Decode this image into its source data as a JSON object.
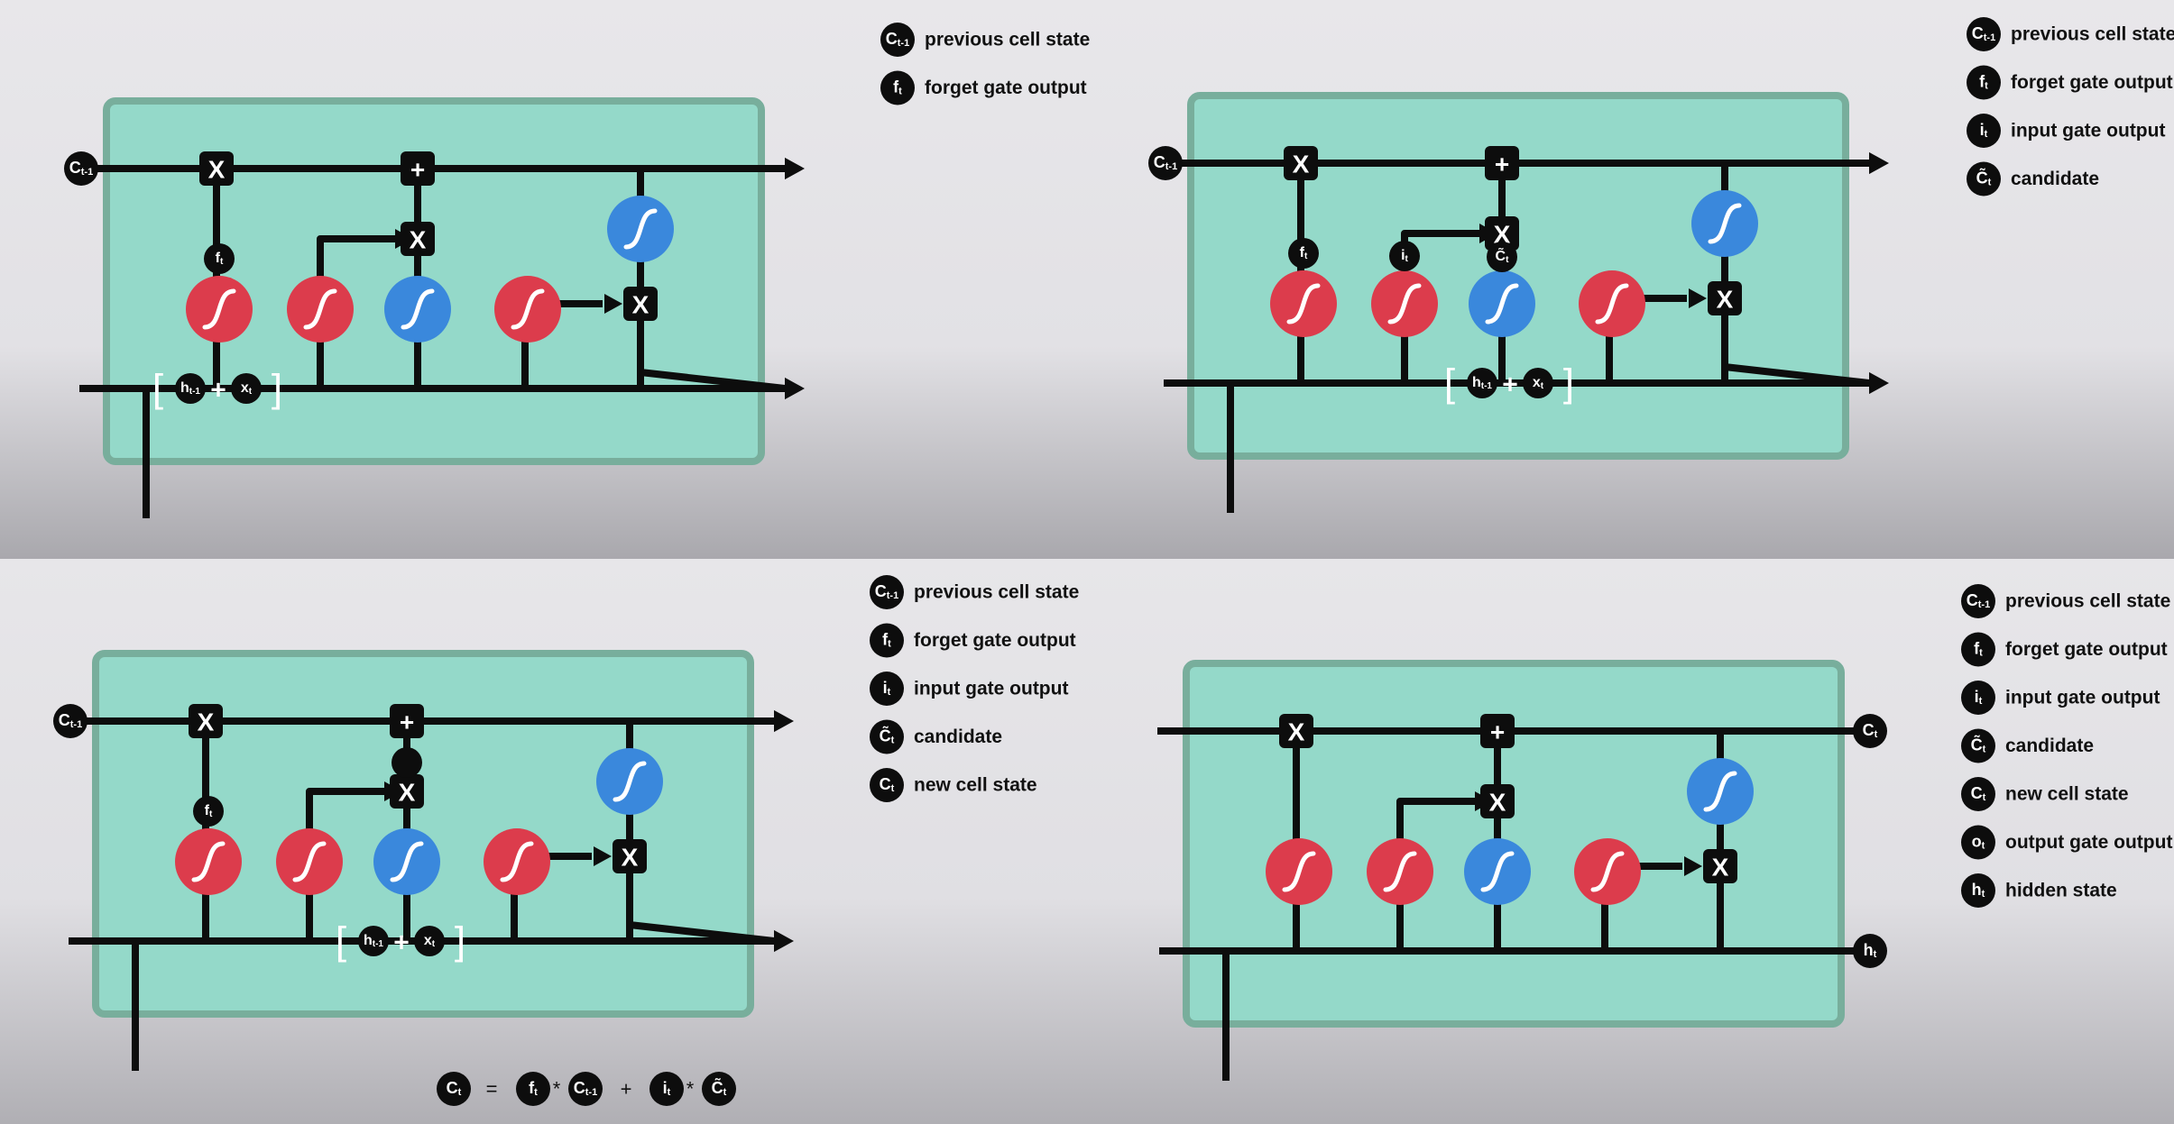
{
  "diagram": {
    "panels": [
      {
        "legend": [
          {
            "symbol": "C_{t-1}",
            "label": "previous cell state"
          },
          {
            "symbol": "f_t",
            "label": "forget gate output"
          }
        ],
        "node_labels": {
          "forget_gate": "f_t"
        },
        "input_tokens": [
          "h_{t-1}",
          "+",
          "x_t"
        ],
        "cell_input": "C_{t-1}"
      },
      {
        "legend": [
          {
            "symbol": "C_{t-1}",
            "label": "previous cell state"
          },
          {
            "symbol": "f_t",
            "label": "forget gate output"
          },
          {
            "symbol": "i_t",
            "label": "input gate output"
          },
          {
            "symbol": "C~_t",
            "label": "candidate"
          }
        ],
        "node_labels": {
          "forget_gate": "f_t",
          "input_gate": "i_t",
          "candidate": "C~_t"
        },
        "input_tokens": [
          "h_{t-1}",
          "+",
          "x_t"
        ],
        "cell_input": "C_{t-1}"
      },
      {
        "legend": [
          {
            "symbol": "C_{t-1}",
            "label": "previous cell state"
          },
          {
            "symbol": "f_t",
            "label": "forget gate output"
          },
          {
            "symbol": "i_t",
            "label": "input gate output"
          },
          {
            "symbol": "C~_t",
            "label": "candidate"
          },
          {
            "symbol": "C_t",
            "label": "new cell state"
          }
        ],
        "node_labels": {
          "forget_gate": "f_t"
        },
        "input_tokens": [
          "h_{t-1}",
          "+",
          "x_t"
        ],
        "cell_input": "C_{t-1}",
        "equation": {
          "lhs": "C_t",
          "equals": "=",
          "terms": [
            "f_t",
            "*",
            "C_{t-1}",
            "+",
            "i_t",
            "*",
            "C~_t"
          ]
        }
      },
      {
        "legend": [
          {
            "symbol": "C_{t-1}",
            "label": "previous cell state"
          },
          {
            "symbol": "f_t",
            "label": "forget gate output"
          },
          {
            "symbol": "i_t",
            "label": "input gate output"
          },
          {
            "symbol": "C~_t",
            "label": "candidate"
          },
          {
            "symbol": "C_t",
            "label": "new cell state"
          },
          {
            "symbol": "o_t",
            "label": "output gate output"
          },
          {
            "symbol": "h_t",
            "label": "hidden state"
          }
        ],
        "cell_output": "C_t",
        "hidden_output": "h_t"
      }
    ],
    "operators": {
      "multiply": "X",
      "add": "+"
    },
    "colors": {
      "cell_fill": "#94d9c9",
      "cell_border": "#78ae9c",
      "sigmoid": "#dc3c4c",
      "tanh": "#3a88dc",
      "line": "#0d0d0d",
      "background": "#e6e5e8"
    }
  }
}
